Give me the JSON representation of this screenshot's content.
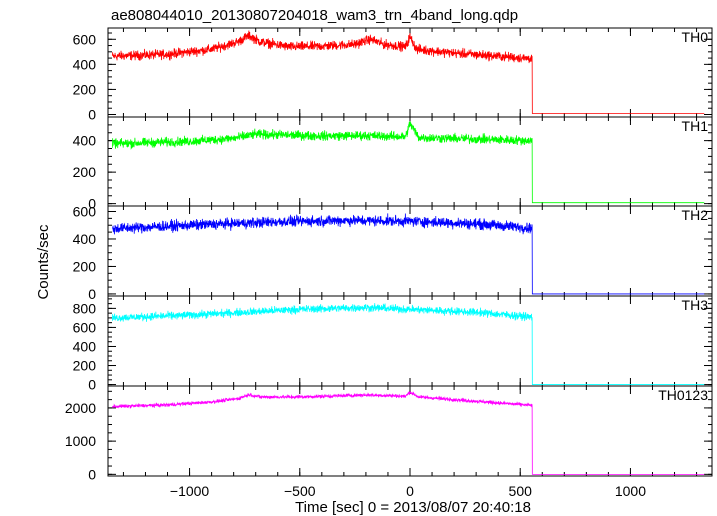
{
  "chart_data": {
    "type": "line",
    "title": "ae808044010_20130807204018_wam3_trn_4band_long.qdp",
    "xlabel": "Time [sec] 0 = 2013/08/07 20:40:18",
    "ylabel": "Counts/sec",
    "xlim": [
      -1370,
      1370
    ],
    "xticks": [
      -1000,
      -500,
      0,
      500,
      1000
    ],
    "xtick_labels": [
      "−1000",
      "−500",
      "0",
      "500",
      "1000"
    ],
    "data_range": [
      -1350,
      1340
    ],
    "drop_time": 555,
    "grid": false,
    "legend": "none",
    "panels": [
      {
        "name": "TH0",
        "color": "#ff0000",
        "ylim": [
          -20,
          690
        ],
        "yticks": [
          0,
          200,
          400,
          600
        ],
        "noise": 32,
        "after_value": 8,
        "shape": [
          [
            -1350,
            465
          ],
          [
            -1100,
            480
          ],
          [
            -900,
            520
          ],
          [
            -780,
            580
          ],
          [
            -730,
            630
          ],
          [
            -680,
            580
          ],
          [
            -550,
            540
          ],
          [
            -400,
            545
          ],
          [
            -250,
            560
          ],
          [
            -180,
            600
          ],
          [
            -120,
            560
          ],
          [
            -20,
            540
          ],
          [
            0,
            620
          ],
          [
            30,
            520
          ],
          [
            200,
            490
          ],
          [
            400,
            465
          ],
          [
            550,
            445
          ]
        ]
      },
      {
        "name": "TH1",
        "color": "#00ff00",
        "ylim": [
          -15,
          550
        ],
        "yticks": [
          0,
          200,
          400
        ],
        "noise": 25,
        "after_value": 6,
        "shape": [
          [
            -1350,
            380
          ],
          [
            -1000,
            395
          ],
          [
            -800,
            415
          ],
          [
            -700,
            440
          ],
          [
            -400,
            430
          ],
          [
            -200,
            432
          ],
          [
            -20,
            425
          ],
          [
            0,
            510
          ],
          [
            40,
            420
          ],
          [
            300,
            410
          ],
          [
            550,
            400
          ]
        ]
      },
      {
        "name": "TH2",
        "color": "#0000ff",
        "ylim": [
          -15,
          640
        ],
        "yticks": [
          0,
          200,
          400,
          600
        ],
        "noise": 33,
        "after_value": 0,
        "shape": [
          [
            -1350,
            475
          ],
          [
            -1000,
            500
          ],
          [
            -600,
            525
          ],
          [
            -300,
            535
          ],
          [
            0,
            530
          ],
          [
            300,
            510
          ],
          [
            550,
            480
          ]
        ]
      },
      {
        "name": "TH3",
        "color": "#00ffff",
        "ylim": [
          -15,
          930
        ],
        "yticks": [
          0,
          200,
          400,
          600,
          800
        ],
        "noise": 35,
        "after_value": 0,
        "shape": [
          [
            -1350,
            700
          ],
          [
            -1000,
            730
          ],
          [
            -500,
            790
          ],
          [
            -200,
            810
          ],
          [
            0,
            790
          ],
          [
            300,
            760
          ],
          [
            550,
            710
          ]
        ]
      },
      {
        "name": "TH0123",
        "color": "#ff00ff",
        "ylim": [
          -50,
          2660
        ],
        "yticks": [
          0,
          1000,
          2000
        ],
        "noise": 45,
        "after_value": 0,
        "shape": [
          [
            -1350,
            2040
          ],
          [
            -1100,
            2090
          ],
          [
            -900,
            2180
          ],
          [
            -780,
            2280
          ],
          [
            -730,
            2400
          ],
          [
            -680,
            2330
          ],
          [
            -500,
            2330
          ],
          [
            -200,
            2390
          ],
          [
            -100,
            2370
          ],
          [
            -20,
            2350
          ],
          [
            0,
            2480
          ],
          [
            40,
            2330
          ],
          [
            300,
            2200
          ],
          [
            550,
            2080
          ]
        ]
      }
    ]
  }
}
